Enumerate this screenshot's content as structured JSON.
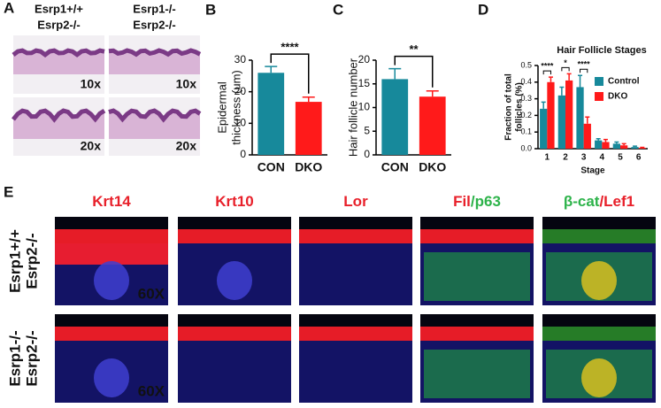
{
  "panel_labels": [
    "A",
    "B",
    "C",
    "D",
    "E"
  ],
  "histology": {
    "column_headers": [
      [
        "Esrp1+/+",
        "Esrp2-/-"
      ],
      [
        "Esrp1-/-",
        "Esrp2-/-"
      ]
    ],
    "magnifications": [
      "10x",
      "10x",
      "20x",
      "20x"
    ]
  },
  "fluorescence": {
    "stains": [
      [
        {
          "text": "Krt14",
          "color": "#e8202a"
        }
      ],
      [
        {
          "text": "Krt10",
          "color": "#e8202a"
        }
      ],
      [
        {
          "text": "Lor",
          "color": "#e8202a"
        }
      ],
      [
        {
          "text": "Fil",
          "color": "#e8202a"
        },
        {
          "text": "/p63",
          "color": "#2db34a"
        }
      ],
      [
        {
          "text": "β-cat",
          "color": "#2db34a"
        },
        {
          "text": "/Lef1",
          "color": "#e8202a"
        }
      ]
    ],
    "row_labels": [
      [
        "Esrp1+/+",
        "Esrp2-/-"
      ],
      [
        "Esrp1-/-",
        "Esrp2-/-"
      ]
    ],
    "magnifications": [
      "60X",
      "60X"
    ]
  },
  "chart_data": [
    {
      "type": "bar",
      "ylabel": [
        "Epidermal",
        "thickness (um)"
      ],
      "categories": [
        "CON",
        "DKO"
      ],
      "values": [
        26,
        16.8
      ],
      "errors": [
        2,
        1.5
      ],
      "colors": [
        "#17899b",
        "#ff1a1a"
      ],
      "ylim": [
        0,
        30
      ],
      "yticks": [
        0,
        10,
        20,
        30
      ],
      "significance": "****"
    },
    {
      "type": "bar",
      "ylabel": [
        "Hair follicle number"
      ],
      "categories": [
        "CON",
        "DKO"
      ],
      "values": [
        16,
        12.3
      ],
      "errors": [
        2.2,
        1.2
      ],
      "colors": [
        "#17899b",
        "#ff1a1a"
      ],
      "ylim": [
        0,
        20
      ],
      "yticks": [
        0,
        5,
        10,
        15,
        20
      ],
      "significance": "**"
    },
    {
      "type": "bar",
      "title": "Hair Follicle Stages",
      "ylabel": [
        "Fraction of total",
        "follicles (%)"
      ],
      "xlabel": "Stage",
      "categories": [
        "1",
        "2",
        "3",
        "4",
        "5",
        "6"
      ],
      "series": [
        {
          "name": "Control",
          "color": "#17899b",
          "values": [
            0.24,
            0.32,
            0.37,
            0.05,
            0.03,
            0.01
          ],
          "errors": [
            0.04,
            0.05,
            0.07,
            0.01,
            0.01,
            0.005
          ]
        },
        {
          "name": "DKO",
          "color": "#ff1a1a",
          "values": [
            0.4,
            0.41,
            0.15,
            0.04,
            0.02,
            0.005
          ],
          "errors": [
            0.03,
            0.04,
            0.04,
            0.015,
            0.01,
            0.003
          ]
        }
      ],
      "annotations": [
        "****",
        "*",
        "****",
        null,
        null,
        null
      ],
      "ylim": [
        0,
        0.5
      ],
      "yticks": [
        {
          "value": 0,
          "label": "0.0"
        },
        0.1,
        0.2,
        0.3,
        0.4,
        0.5
      ],
      "legend": "upper right"
    }
  ]
}
